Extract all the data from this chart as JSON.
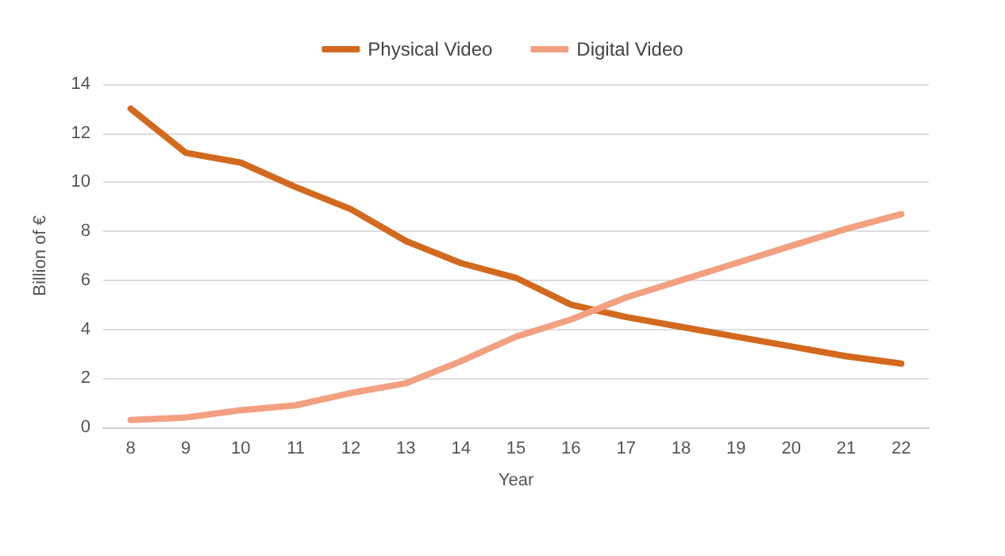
{
  "chart_data": {
    "type": "line",
    "xlabel": "Year",
    "ylabel": "Billion of €",
    "categories": [
      "8",
      "9",
      "10",
      "11",
      "12",
      "13",
      "14",
      "15",
      "16",
      "17",
      "18",
      "19",
      "20",
      "21",
      "22"
    ],
    "series": [
      {
        "name": "Physical Video",
        "color": "#d2691e",
        "values": [
          13.0,
          11.2,
          10.8,
          9.8,
          8.9,
          7.6,
          6.7,
          6.1,
          5.0,
          4.5,
          4.1,
          3.7,
          3.3,
          2.9,
          2.6
        ]
      },
      {
        "name": "Digital Video",
        "color": "#f2a080",
        "values": [
          0.3,
          0.4,
          0.7,
          0.9,
          1.4,
          1.8,
          2.7,
          3.7,
          4.4,
          5.3,
          6.0,
          6.7,
          7.4,
          8.1,
          8.7
        ]
      }
    ],
    "ylim": [
      0,
      14
    ],
    "yticks": [
      0,
      2,
      4,
      6,
      8,
      10,
      12,
      14
    ],
    "grid": "y",
    "legend": "top",
    "marker": "none",
    "line_style": "solid"
  }
}
